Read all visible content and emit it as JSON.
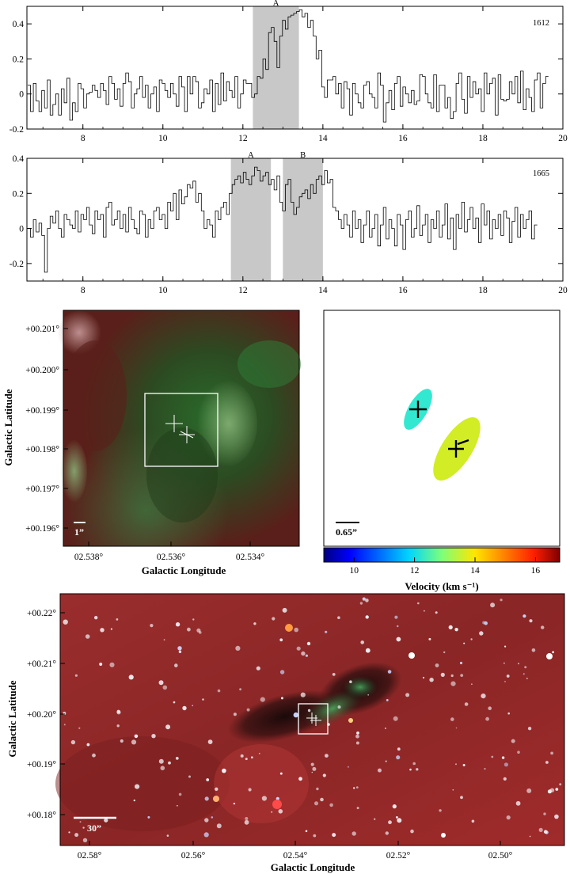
{
  "chart_data": [
    {
      "type": "line",
      "panel": "spectrum-1612",
      "label": "1612",
      "xlim": [
        6.6,
        20
      ],
      "ylim": [
        -0.2,
        0.5
      ],
      "xticks": [
        "8",
        "10",
        "12",
        "14",
        "16",
        "18",
        "20"
      ],
      "xtick_values": [
        8,
        10,
        12,
        14,
        16,
        18,
        20
      ],
      "yticks": [
        "-0.2",
        "0",
        "0.2",
        "0.4"
      ],
      "ytick_values": [
        -0.2,
        0,
        0.2,
        0.4
      ],
      "x_start": 6.62,
      "x_step": 0.07,
      "values": [
        0.05,
        -0.1,
        0.06,
        -0.04,
        -0.1,
        0.02,
        -0.08,
        0.08,
        -0.12,
        -0.06,
        0.0,
        -0.12,
        0.03,
        -0.05,
        0.09,
        -0.15,
        -0.05,
        -0.1,
        0.06,
        0.03,
        -0.08,
        0.0,
        0.01,
        0.05,
        0.02,
        -0.02,
        0.06,
        0.02,
        -0.06,
        0.1,
        0.06,
        -0.03,
        0.03,
        -0.07,
        0.06,
        0.12,
        0.07,
        -0.08,
        0.0,
        0.03,
        0.1,
        -0.02,
        0.05,
        -0.08,
        0.0,
        0.04,
        -0.1,
        0.08,
        0.06,
        0.02,
        -0.02,
        0.06,
        0.0,
        -0.07,
        0.1,
        0.04,
        -0.1,
        0.1,
        0.0,
        0.1,
        0.07,
        -0.08,
        -0.05,
        0.03,
        0.0,
        0.08,
        -0.1,
        0.06,
        -0.06,
        0.12,
        -0.04,
        0.07,
        0.02,
        -0.02,
        0.1,
        -0.08,
        0.0,
        0.08,
        0.06,
        0.06,
        -0.02,
        0.0,
        0.1,
        0.09,
        0.2,
        0.14,
        0.35,
        0.38,
        0.3,
        0.15,
        0.33,
        0.42,
        0.37,
        0.44,
        0.45,
        0.46,
        0.47,
        0.48,
        0.44,
        0.46,
        0.38,
        0.42,
        0.33,
        0.2,
        0.25,
        0.04,
        -0.02,
        0.08,
        0.08,
        0.1,
        0.0,
        0.06,
        -0.08,
        0.07,
        0.03,
        -0.12,
        0.06,
        0.0,
        -0.05,
        -0.08,
        0.05,
        0.07,
        0.0,
        -0.02,
        -0.08,
        0.12,
        0.05,
        -0.16,
        -0.05,
        0.02,
        -0.09,
        0.06,
        0.1,
        -0.07,
        0.04,
        0.0,
        -0.05,
        0.02,
        -0.06,
        -0.04,
        0.11,
        0.1,
        0.0,
        -0.05,
        -0.08,
        0.11,
        -0.1,
        0.05,
        0.05,
        -0.08,
        -0.02,
        -0.14,
        -0.1,
        0.06,
        0.12,
        -0.03,
        -0.11,
        0.1,
        -0.02,
        0.07,
        0.0,
        0.03,
        -0.1,
        0.12,
        0.0,
        0.06,
        0.09,
        -0.12,
        0.11,
        -0.03,
        -0.04,
        -0.03,
        0.07,
        0.0,
        0.1,
        -0.05,
        0.13,
        -0.09,
        0.03,
        -0.02,
        -0.1,
        0.08,
        0.12,
        -0.08,
        0.06,
        0.1
      ],
      "shaded_ranges": [
        {
          "label": "A",
          "x0": 12.25,
          "x1": 13.4
        }
      ]
    },
    {
      "type": "line",
      "panel": "spectrum-1665",
      "label": "1665",
      "xlim": [
        6.6,
        20
      ],
      "ylim": [
        -0.3,
        0.4
      ],
      "xticks": [
        "8",
        "10",
        "12",
        "14",
        "16",
        "18",
        "20"
      ],
      "xtick_values": [
        8,
        10,
        12,
        14,
        16,
        18,
        20
      ],
      "yticks": [
        "-0.2",
        "0",
        "0.2",
        "0.4"
      ],
      "ytick_values": [
        -0.2,
        0,
        0.2,
        0.4
      ],
      "x_start": 6.62,
      "x_step": 0.07,
      "values": [
        0.0,
        -0.05,
        0.05,
        -0.02,
        0.03,
        -0.04,
        -0.25,
        0.0,
        0.07,
        0.03,
        0.1,
        0.0,
        -0.05,
        0.08,
        0.05,
        0.02,
        0.0,
        0.1,
        -0.02,
        0.08,
        0.05,
        0.12,
        0.02,
        -0.03,
        0.1,
        0.05,
        0.08,
        -0.05,
        0.12,
        0.15,
        0.02,
        0.05,
        0.1,
        0.0,
        0.08,
        -0.02,
        0.12,
        0.05,
        0.0,
        -0.03,
        0.1,
        0.08,
        -0.05,
        0.05,
        0.0,
        0.1,
        0.12,
        0.05,
        0.08,
        0.0,
        0.15,
        0.1,
        0.2,
        0.05,
        0.22,
        0.14,
        0.18,
        0.25,
        0.23,
        0.27,
        0.15,
        0.2,
        0.1,
        0.0,
        0.05,
        0.02,
        -0.05,
        0.1,
        0.05,
        0.12,
        0.15,
        0.08,
        0.2,
        0.25,
        0.28,
        0.3,
        0.26,
        0.32,
        0.28,
        0.25,
        0.3,
        0.35,
        0.33,
        0.27,
        0.3,
        0.32,
        0.25,
        0.28,
        0.22,
        0.3,
        0.15,
        0.1,
        0.25,
        0.28,
        0.15,
        0.08,
        0.12,
        0.18,
        0.2,
        0.22,
        0.17,
        0.25,
        0.2,
        0.28,
        0.3,
        0.25,
        0.33,
        0.26,
        0.28,
        0.12,
        0.1,
        0.05,
        0.0,
        0.08,
        0.02,
        -0.05,
        0.1,
        0.0,
        0.05,
        -0.08,
        0.02,
        0.1,
        -0.05,
        0.0,
        0.08,
        -0.1,
        0.02,
        0.12,
        -0.06,
        0.05,
        0.0,
        -0.1,
        0.08,
        0.02,
        -0.12,
        0.05,
        0.1,
        -0.05,
        0.0,
        0.13,
        -0.04,
        0.02,
        0.08,
        -0.08,
        0.05,
        0.0,
        0.1,
        -0.05,
        0.02,
        0.14,
        -0.06,
        0.06,
        -0.12,
        0.08,
        0.0,
        0.15,
        -0.02,
        0.05,
        0.12,
        0.0,
        0.06,
        -0.08,
        0.14,
        0.02,
        0.1,
        -0.06,
        0.05,
        0.0,
        0.08,
        -0.04,
        0.1,
        0.06,
        -0.08,
        0.04,
        0.12,
        -0.05,
        0.08,
        0.0,
        0.05,
        0.1,
        -0.06,
        0.02
      ],
      "shaded_ranges": [
        {
          "label": "A",
          "x0": 11.7,
          "x1": 12.7
        },
        {
          "label": "B",
          "x0": 13.0,
          "x1": 14.0
        }
      ]
    },
    {
      "type": "heatmap",
      "panel": "image-zoom",
      "xlabel": "Galactic Longitude",
      "ylabel": "Galactic Latitude",
      "xticks": [
        "02.538°",
        "02.536°",
        "02.534°"
      ],
      "yticks": [
        "+00.201°",
        "+00.200°",
        "+00.199°",
        "+00.198°",
        "+00.197°",
        "+00.196°"
      ],
      "scale_bar_label": "1”"
    },
    {
      "type": "scatter",
      "panel": "velocity-map",
      "xlabel": "Velocity (km s⁻¹)",
      "colorbar_ticks": [
        "10",
        "12",
        "14",
        "16"
      ],
      "colorbar_range": [
        9.0,
        16.8
      ],
      "scale_bar_label": "0.65”",
      "components": [
        {
          "velocity": 12.1,
          "color": "#33e8d0"
        },
        {
          "velocity": 13.9,
          "color": "#d2ec26"
        }
      ]
    },
    {
      "type": "heatmap",
      "panel": "image-wide",
      "xlabel": "Galactic Longitude",
      "ylabel": "Galactic Latitude",
      "xticks": [
        "02.58°",
        "02.56°",
        "02.54°",
        "02.52°",
        "02.50°"
      ],
      "yticks": [
        "+00.22°",
        "+00.21°",
        "+00.20°",
        "+00.19°",
        "+00.18°"
      ],
      "scale_bar_label": "30”"
    }
  ]
}
